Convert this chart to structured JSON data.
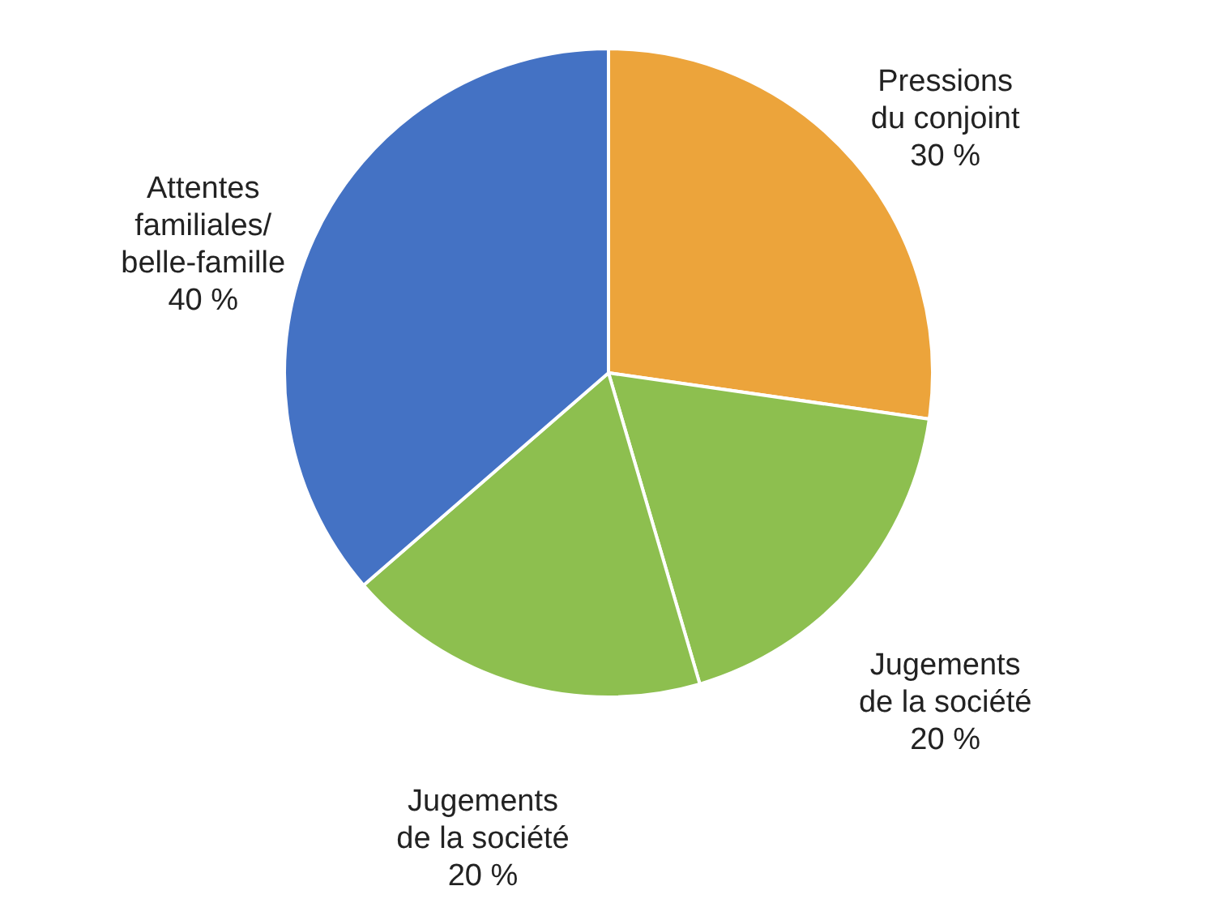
{
  "chart_data": {
    "type": "pie",
    "categories": [
      "Pressions\ndu conjoint",
      "Jugements\nde la société",
      "Jugements\nde la société",
      "Attentes\nfamiliales/\nbelle-famille"
    ],
    "values": [
      30,
      20,
      20,
      40
    ],
    "colors": [
      "#eca43b",
      "#8dbf4f",
      "#8dbf4f",
      "#4472c4"
    ],
    "value_labels": [
      "30 %",
      "20 %",
      "20 %",
      "40 %"
    ]
  }
}
